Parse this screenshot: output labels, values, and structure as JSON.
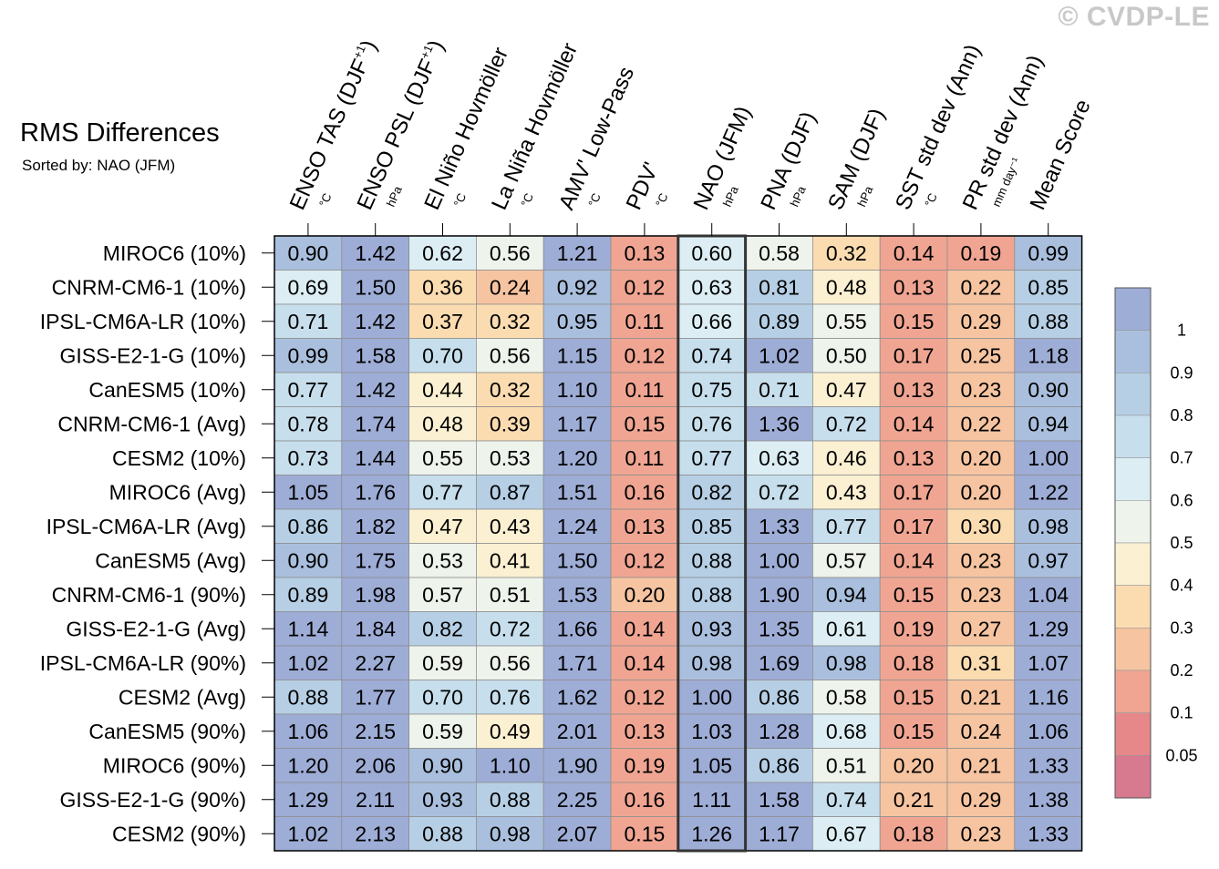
{
  "watermark": "© CVDP-LE",
  "chart_data": {
    "type": "heatmap",
    "title": "RMS Differences",
    "subtitle": "Sorted by: NAO (JFM)",
    "highlight_column": 6,
    "columns": [
      {
        "label": "ENSO TAS (DJF",
        "sup": "+1",
        "suffix": ")",
        "unit": "°C"
      },
      {
        "label": "ENSO PSL (DJF",
        "sup": "+1",
        "suffix": ")",
        "unit": "hPa"
      },
      {
        "label": "El Niño Hovmöller",
        "sup": "",
        "suffix": "",
        "unit": "°C"
      },
      {
        "label": "La Niña Hovmöller",
        "sup": "",
        "suffix": "",
        "unit": "°C"
      },
      {
        "label": "AMV' Low-Pass",
        "sup": "",
        "suffix": "",
        "unit": "°C"
      },
      {
        "label": "PDV'",
        "sup": "",
        "suffix": "",
        "unit": "°C"
      },
      {
        "label": "NAO (JFM)",
        "sup": "",
        "suffix": "",
        "unit": "hPa"
      },
      {
        "label": "PNA (DJF)",
        "sup": "",
        "suffix": "",
        "unit": "hPa"
      },
      {
        "label": "SAM (DJF)",
        "sup": "",
        "suffix": "",
        "unit": "hPa"
      },
      {
        "label": "SST std dev (Ann)",
        "sup": "",
        "suffix": "",
        "unit": "°C"
      },
      {
        "label": "PR std dev (Ann)",
        "sup": "",
        "suffix": "",
        "unit": "mm day⁻¹"
      },
      {
        "label": "Mean Score",
        "sup": "",
        "suffix": "",
        "unit": ""
      }
    ],
    "rows": [
      {
        "label": "MIROC6 (10%)",
        "values": [
          0.9,
          1.42,
          0.62,
          0.56,
          1.21,
          0.13,
          0.6,
          0.58,
          0.32,
          0.14,
          0.19,
          0.99
        ]
      },
      {
        "label": "CNRM-CM6-1 (10%)",
        "values": [
          0.69,
          1.5,
          0.36,
          0.24,
          0.92,
          0.12,
          0.63,
          0.81,
          0.48,
          0.13,
          0.22,
          0.85
        ]
      },
      {
        "label": "IPSL-CM6A-LR (10%)",
        "values": [
          0.71,
          1.42,
          0.37,
          0.32,
          0.95,
          0.11,
          0.66,
          0.89,
          0.55,
          0.15,
          0.29,
          0.88
        ]
      },
      {
        "label": "GISS-E2-1-G (10%)",
        "values": [
          0.99,
          1.58,
          0.7,
          0.56,
          1.15,
          0.12,
          0.74,
          1.02,
          0.5,
          0.17,
          0.25,
          1.18
        ]
      },
      {
        "label": "CanESM5 (10%)",
        "values": [
          0.77,
          1.42,
          0.44,
          0.32,
          1.1,
          0.11,
          0.75,
          0.71,
          0.47,
          0.13,
          0.23,
          0.9
        ]
      },
      {
        "label": "CNRM-CM6-1 (Avg)",
        "values": [
          0.78,
          1.74,
          0.48,
          0.39,
          1.17,
          0.15,
          0.76,
          1.36,
          0.72,
          0.14,
          0.22,
          0.94
        ]
      },
      {
        "label": "CESM2 (10%)",
        "values": [
          0.73,
          1.44,
          0.55,
          0.53,
          1.2,
          0.11,
          0.77,
          0.63,
          0.46,
          0.13,
          0.2,
          1.0
        ]
      },
      {
        "label": "MIROC6 (Avg)",
        "values": [
          1.05,
          1.76,
          0.77,
          0.87,
          1.51,
          0.16,
          0.82,
          0.72,
          0.43,
          0.17,
          0.2,
          1.22
        ]
      },
      {
        "label": "IPSL-CM6A-LR (Avg)",
        "values": [
          0.86,
          1.82,
          0.47,
          0.43,
          1.24,
          0.13,
          0.85,
          1.33,
          0.77,
          0.17,
          0.3,
          0.98
        ]
      },
      {
        "label": "CanESM5 (Avg)",
        "values": [
          0.9,
          1.75,
          0.53,
          0.41,
          1.5,
          0.12,
          0.88,
          1.0,
          0.57,
          0.14,
          0.23,
          0.97
        ]
      },
      {
        "label": "CNRM-CM6-1 (90%)",
        "values": [
          0.89,
          1.98,
          0.57,
          0.51,
          1.53,
          0.2,
          0.88,
          1.9,
          0.94,
          0.15,
          0.23,
          1.04
        ]
      },
      {
        "label": "GISS-E2-1-G (Avg)",
        "values": [
          1.14,
          1.84,
          0.82,
          0.72,
          1.66,
          0.14,
          0.93,
          1.35,
          0.61,
          0.19,
          0.27,
          1.29
        ]
      },
      {
        "label": "IPSL-CM6A-LR (90%)",
        "values": [
          1.02,
          2.27,
          0.59,
          0.56,
          1.71,
          0.14,
          0.98,
          1.69,
          0.98,
          0.18,
          0.31,
          1.07
        ]
      },
      {
        "label": "CESM2 (Avg)",
        "values": [
          0.88,
          1.77,
          0.7,
          0.76,
          1.62,
          0.12,
          1.0,
          0.86,
          0.58,
          0.15,
          0.21,
          1.16
        ]
      },
      {
        "label": "CanESM5 (90%)",
        "values": [
          1.06,
          2.15,
          0.59,
          0.49,
          2.01,
          0.13,
          1.03,
          1.28,
          0.68,
          0.15,
          0.24,
          1.06
        ]
      },
      {
        "label": "MIROC6 (90%)",
        "values": [
          1.2,
          2.06,
          0.9,
          1.1,
          1.9,
          0.19,
          1.05,
          0.86,
          0.51,
          0.2,
          0.21,
          1.33
        ]
      },
      {
        "label": "GISS-E2-1-G (90%)",
        "values": [
          1.29,
          2.11,
          0.93,
          0.88,
          2.25,
          0.16,
          1.11,
          1.58,
          0.74,
          0.21,
          0.29,
          1.38
        ]
      },
      {
        "label": "CESM2 (90%)",
        "values": [
          1.02,
          2.13,
          0.88,
          0.98,
          2.07,
          0.15,
          1.26,
          1.17,
          0.67,
          0.18,
          0.23,
          1.33
        ]
      }
    ],
    "colorbar": {
      "tick_labels": [
        "1",
        "0.9",
        "0.8",
        "0.7",
        "0.6",
        "0.5",
        "0.4",
        "0.3",
        "0.2",
        "0.1",
        "0.05"
      ],
      "levels": [
        1.0,
        0.9,
        0.8,
        0.7,
        0.6,
        0.5,
        0.4,
        0.3,
        0.2,
        0.1,
        0.05
      ],
      "colors": [
        "#9eadd6",
        "#a9bfdd",
        "#b6cfe5",
        "#c7deec",
        "#dceef4",
        "#eef3ec",
        "#fbf0d2",
        "#fbdcb1",
        "#f6c4a1",
        "#f0a592",
        "#e6888a",
        "#d7798f"
      ]
    }
  }
}
